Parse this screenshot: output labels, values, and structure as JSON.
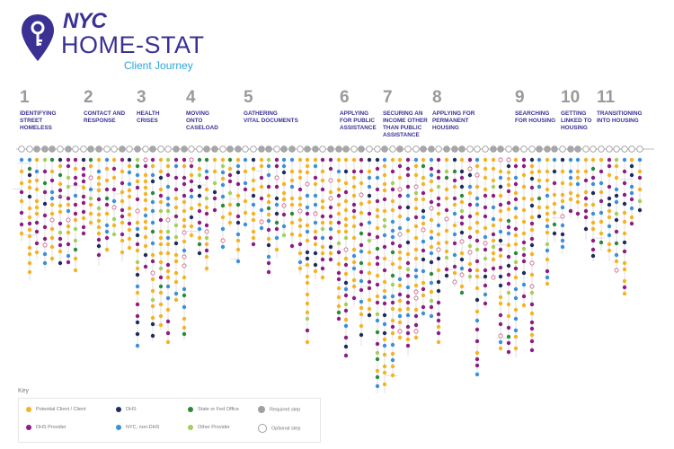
{
  "header": {
    "brand": "NYC",
    "title": "HOME-STAT",
    "subtitle": "Client Journey"
  },
  "steps": [
    {
      "num": "1",
      "label": "IDENTIFYING\nSTREET\nHOMELESS"
    },
    {
      "num": "2",
      "label": "CONTACT AND\nRESPONSE"
    },
    {
      "num": "3",
      "label": "HEALTH\nCRISES"
    },
    {
      "num": "4",
      "label": "MOVING\nONTO\nCASELOAD"
    },
    {
      "num": "5",
      "label": "GATHERING\nVITAL DOCUMENTS"
    },
    {
      "num": "6",
      "label": "APPLYING\nFOR PUBLIC\nASSISTANCE"
    },
    {
      "num": "7",
      "label": "SECURING AN\nINCOME OTHER\nTHAN PUBLIC\nASSISTANCE"
    },
    {
      "num": "8",
      "label": "APPLYING FOR\nPERMANENT\nHOUSING"
    },
    {
      "num": "9",
      "label": "SEARCHING\nFOR HOUSING"
    },
    {
      "num": "10",
      "label": "GETTING\nLINKED TO\nHOUSING"
    },
    {
      "num": "11",
      "label": "TRANSITIONING\nINTO HOUSING"
    }
  ],
  "key": {
    "title": "Key",
    "items": [
      {
        "label": "Potential Client / Client",
        "color": "#f5b324",
        "style": "filled"
      },
      {
        "label": "DHS Provider",
        "color": "#8c1d82",
        "style": "filled"
      },
      {
        "label": "DHS",
        "color": "#1f2d5c",
        "style": "filled"
      },
      {
        "label": "NYC, non-DHS",
        "color": "#3c8fd8",
        "style": "filled"
      },
      {
        "label": "State or Fed Office",
        "color": "#2a8a3a",
        "style": "filled"
      },
      {
        "label": "Other Provider",
        "color": "#a3cf5a",
        "style": "filled"
      },
      {
        "label": "Required step",
        "color": "#a0a0a0",
        "style": "filled"
      },
      {
        "label": "Optional step",
        "color": "#a0a0a0",
        "style": "outline"
      }
    ]
  },
  "colors": {
    "brand": "#3a3193",
    "accent": "#2aa6de",
    "step_number": "#9a9a9a",
    "timeline": "#bdbdbd"
  }
}
